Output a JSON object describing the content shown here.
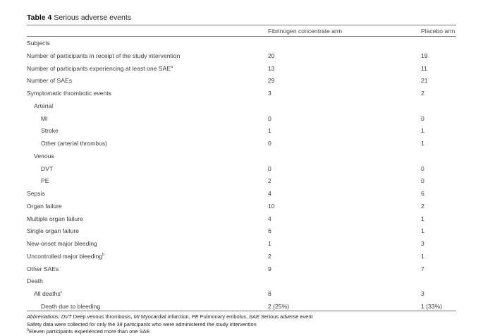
{
  "table": {
    "caption_label": "Table 4",
    "caption_text": "Serious adverse events",
    "col_headers": [
      "Fibrinogen concentrate arm",
      "Placebo arm"
    ],
    "rows": [
      {
        "label": "Subjects",
        "sup": "",
        "v1": "",
        "v2": ""
      },
      {
        "label": "Number of participants in receipt of the study intervention",
        "sup": "",
        "v1": "20",
        "v2": "19"
      },
      {
        "label": "Number of participants experiencing at least one SAE",
        "sup": "a",
        "v1": "13",
        "v2": "11"
      },
      {
        "label": "Number of SAEs",
        "sup": "",
        "v1": "29",
        "v2": "21"
      },
      {
        "label": "Symptomatic thrombotic events",
        "sup": "",
        "v1": "3",
        "v2": "2"
      },
      {
        "label": "Arterial",
        "sup": "",
        "v1": "",
        "v2": ""
      },
      {
        "label": "MI",
        "sup": "",
        "v1": "0",
        "v2": "0"
      },
      {
        "label": "Stroke",
        "sup": "",
        "v1": "1",
        "v2": "1"
      },
      {
        "label": "Other (arterial thrombus)",
        "sup": "",
        "v1": "0",
        "v2": "1"
      },
      {
        "label": "Venous",
        "sup": "",
        "v1": "",
        "v2": ""
      },
      {
        "label": "DVT",
        "sup": "",
        "v1": "0",
        "v2": "0"
      },
      {
        "label": "PE",
        "sup": "",
        "v1": "2",
        "v2": "0"
      },
      {
        "label": "Sepsis",
        "sup": "",
        "v1": "4",
        "v2": "6"
      },
      {
        "label": "Organ failure",
        "sup": "",
        "v1": "10",
        "v2": "2"
      },
      {
        "label": "Multiple organ failure",
        "sup": "",
        "v1": "4",
        "v2": "1"
      },
      {
        "label": "Single organ failure",
        "sup": "",
        "v1": "6",
        "v2": "1"
      },
      {
        "label": "New-onset major bleeding",
        "sup": "",
        "v1": "1",
        "v2": "3"
      },
      {
        "label": "Uncontrolled major bleeding",
        "sup": "b",
        "v1": "2",
        "v2": "1"
      },
      {
        "label": "Other SAEs",
        "sup": "",
        "v1": "9",
        "v2": "7"
      },
      {
        "label": "Death",
        "sup": "",
        "v1": "",
        "v2": ""
      },
      {
        "label": "All deaths",
        "sup": "c",
        "v1": "8",
        "v2": "3"
      },
      {
        "label": "Death due to bleeding",
        "sup": "",
        "v1": "2 (25%)",
        "v2": "1 (33%)"
      }
    ]
  },
  "footnotes": {
    "abbrev_label": "Abbreviations:",
    "abbrev_items": [
      {
        "abbr": "DVT",
        "text": " Deep venous thrombosis, "
      },
      {
        "abbr": "MI",
        "text": " Myocardial infarction, "
      },
      {
        "abbr": "PE",
        "text": " Pulmonary embolus, "
      },
      {
        "abbr": "SAE",
        "text": " Serious adverse event"
      }
    ],
    "safety_note": "Safety data were collected for only the 39 participants who were administered the study intervention",
    "note_a_marker": "a",
    "note_a": "Eleven participants experienced more than one SAE"
  }
}
